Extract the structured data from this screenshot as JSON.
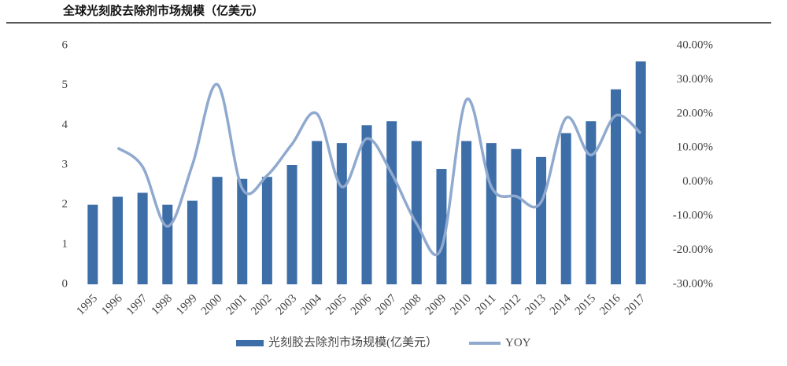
{
  "chart_data": {
    "type": "bar",
    "title": "全球光刻胶去除剂市场规模（亿美元）",
    "categories": [
      "1995",
      "1996",
      "1997",
      "1998",
      "1999",
      "2000",
      "2001",
      "2002",
      "2003",
      "2004",
      "2005",
      "2006",
      "2007",
      "2008",
      "2009",
      "2010",
      "2011",
      "2012",
      "2013",
      "2014",
      "2015",
      "2016",
      "2017"
    ],
    "series": [
      {
        "name": "光刻胶去除剂市场规模(亿美元）",
        "type": "bar",
        "color": "#3d6ea8",
        "values": [
          2.0,
          2.2,
          2.3,
          2.0,
          2.1,
          2.7,
          2.65,
          2.7,
          3.0,
          3.6,
          3.55,
          4.0,
          4.1,
          3.6,
          2.9,
          3.6,
          3.55,
          3.4,
          3.2,
          3.8,
          4.1,
          4.9,
          5.6
        ]
      },
      {
        "name": "YOY",
        "type": "line",
        "axis": "y2",
        "color": "#8fa9cf",
        "values": [
          null,
          10,
          4.5,
          -13,
          5,
          28.6,
          -1.9,
          1.9,
          11.1,
          20,
          -1.4,
          12.7,
          2.5,
          -12.2,
          -19.4,
          24.1,
          -1.4,
          -4.2,
          -5.9,
          18.75,
          7.9,
          19.5,
          14.3
        ]
      }
    ],
    "ylim": [
      0,
      6
    ],
    "yticks": [
      0,
      1,
      2,
      3,
      4,
      5,
      6
    ],
    "y2lim": [
      -30,
      40
    ],
    "y2ticks": [
      {
        "value": -30,
        "label": "-30.00%"
      },
      {
        "value": -20,
        "label": "-20.00%"
      },
      {
        "value": -10,
        "label": "-10.00%"
      },
      {
        "value": 0,
        "label": "0.00%"
      },
      {
        "value": 10,
        "label": "10.00%"
      },
      {
        "value": 20,
        "label": "20.00%"
      },
      {
        "value": 30,
        "label": "30.00%"
      },
      {
        "value": 40,
        "label": "40.00%"
      }
    ],
    "grid": false,
    "legend": "bottom"
  }
}
